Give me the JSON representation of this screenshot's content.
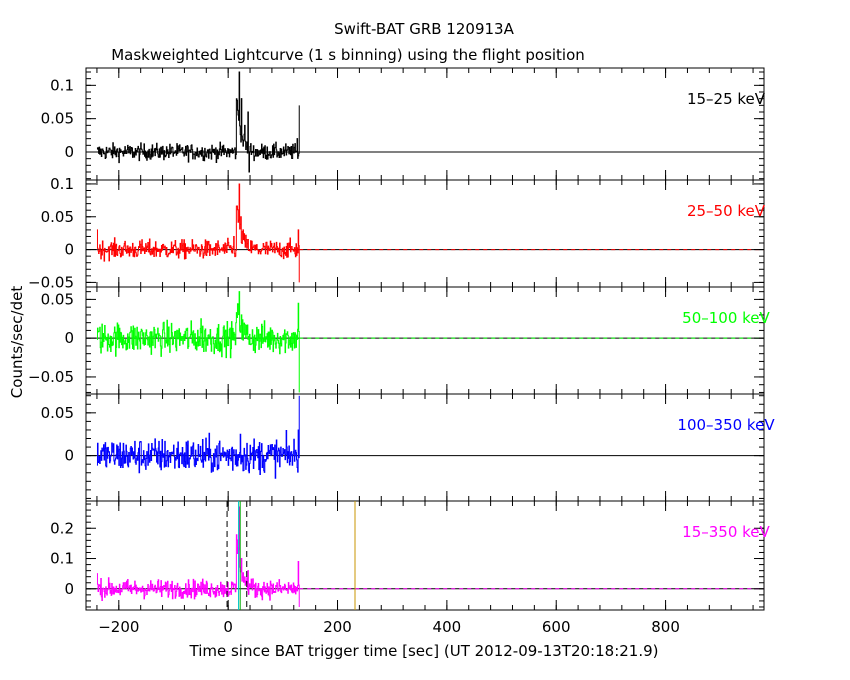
{
  "title": "Swift-BAT GRB 120913A",
  "subtitle": "Maskweighted Lightcurve (1 s binning) using the flight position",
  "chart_data": {
    "type": "line",
    "xlabel": "Time since BAT trigger time [sec] (UT 2012-09-13T20:18:21.9)",
    "ylabel": "Counts/sec/det",
    "xlim": [
      -260,
      980
    ],
    "x_ticks": [
      -200,
      0,
      200,
      400,
      600,
      800
    ],
    "x_tick_labels": [
      "−200",
      "0",
      "200",
      "400",
      "600",
      "800"
    ],
    "data_range": [
      -240,
      130
    ],
    "vertical_lines": [
      {
        "x": -2,
        "style": "dashed",
        "color": "#000000",
        "panel": "15-350 keV"
      },
      {
        "x": 34,
        "style": "dashed",
        "color": "#000000",
        "panel": "15-350 keV"
      },
      {
        "x": 19,
        "style": "solid",
        "color": "#00c8c8",
        "panel": "15-350 keV"
      },
      {
        "x": 22,
        "style": "solid",
        "color": "#00aa00",
        "panel": "15-350 keV"
      },
      {
        "x": 232,
        "style": "solid",
        "color": "#c89600",
        "panel": "15-350 keV"
      }
    ],
    "panels": [
      {
        "name": "15-25 keV",
        "label": "15–25 keV",
        "color": "#000000",
        "ylim": [
          -0.042,
          0.126
        ],
        "y_ticks": [
          0,
          0.05,
          0.1
        ],
        "y_tick_labels": [
          "0",
          "0.05",
          "0.1"
        ],
        "noise": 0.006,
        "zero_line": "solid",
        "peaks": [
          [
            20,
            0.12
          ],
          [
            24,
            0.08
          ],
          [
            30,
            0.04
          ],
          [
            36,
            0.06
          ],
          [
            38,
            -0.03
          ],
          [
            130,
            0.07
          ],
          [
            126,
            0.02
          ]
        ]
      },
      {
        "name": "25-50 keV",
        "label": "25–50 keV",
        "color": "#ff0000",
        "ylim": [
          -0.057,
          0.106
        ],
        "y_ticks": [
          -0.05,
          0,
          0.05,
          0.1
        ],
        "y_tick_labels": [
          "−0.05",
          "0",
          "0.05",
          "0.1"
        ],
        "noise": 0.007,
        "zero_line": "dashed",
        "peaks": [
          [
            20,
            0.1
          ],
          [
            23,
            0.05
          ],
          [
            27,
            0.03
          ],
          [
            10,
            0.02
          ],
          [
            128,
            0.03
          ],
          [
            130,
            -0.05
          ],
          [
            -240,
            0.03
          ]
        ]
      },
      {
        "name": "50-100 keV",
        "label": "50–100 keV",
        "color": "#00ff00",
        "ylim": [
          -0.072,
          0.066
        ],
        "y_ticks": [
          -0.05,
          0,
          0.05
        ],
        "y_tick_labels": [
          "−0.05",
          "0",
          "0.05"
        ],
        "noise": 0.01,
        "zero_line": "dashed",
        "peaks": [
          [
            20,
            0.06
          ],
          [
            24,
            0.03
          ],
          [
            -50,
            0.025
          ],
          [
            128,
            0.045
          ],
          [
            130,
            -0.07
          ]
        ]
      },
      {
        "name": "100-350 keV",
        "label": "100–350 keV",
        "color": "#0000ff",
        "ylim": [
          -0.053,
          0.072
        ],
        "y_ticks": [
          0,
          0.05
        ],
        "y_tick_labels": [
          "0",
          "0.05"
        ],
        "noise": 0.01,
        "zero_line": "solid",
        "peaks": [
          [
            130,
            0.07
          ],
          [
            128,
            0.03
          ],
          [
            131,
            -0.04
          ],
          [
            22,
            0.025
          ]
        ]
      },
      {
        "name": "15-350 keV",
        "label": "15–350 keV",
        "color": "#ff00ff",
        "ylim": [
          -0.07,
          0.29
        ],
        "y_ticks": [
          0,
          0.1,
          0.2
        ],
        "y_tick_labels": [
          "0",
          "0.1",
          "0.2"
        ],
        "noise": 0.015,
        "zero_line": "dashed",
        "peaks": [
          [
            20,
            0.27
          ],
          [
            24,
            0.1
          ],
          [
            36,
            0.06
          ],
          [
            128,
            0.09
          ],
          [
            130,
            -0.06
          ],
          [
            -240,
            0.05
          ]
        ]
      }
    ]
  }
}
